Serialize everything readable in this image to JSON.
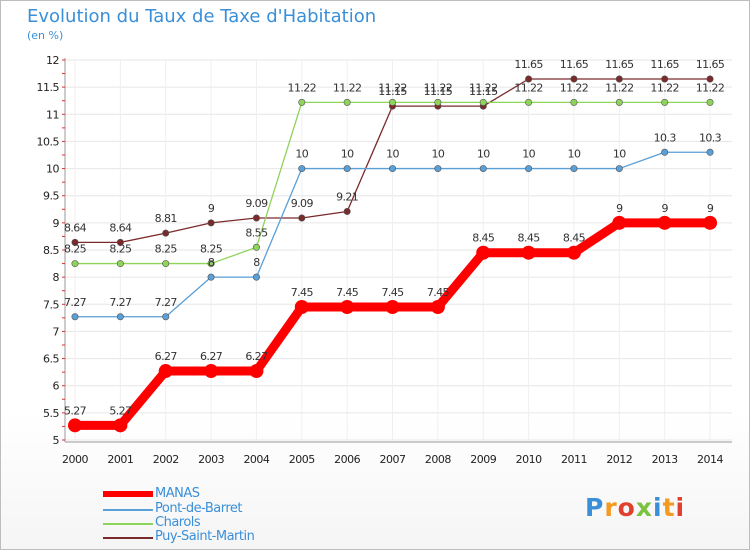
{
  "title": "Evolution du Taux de Taxe d'Habitation",
  "subtitle": "(en %)",
  "logo": {
    "text": "Proxiti",
    "letters": [
      "P",
      "r",
      "o",
      "x",
      "i",
      "t",
      "i"
    ],
    "colors": [
      "#3b8fd8",
      "#f39a1f",
      "#e0412e",
      "#7cc242",
      "#3b8fd8",
      "#f39a1f",
      "#e0412e"
    ]
  },
  "chart_data": {
    "type": "line",
    "x": [
      "2000",
      "2001",
      "2002",
      "2003",
      "2004",
      "2005",
      "2006",
      "2007",
      "2008",
      "2009",
      "2010",
      "2011",
      "2012",
      "2013",
      "2014"
    ],
    "y_ticks": [
      "5",
      "5.5",
      "6",
      "6.5",
      "7",
      "7.5",
      "8",
      "8.5",
      "9",
      "9.5",
      "10",
      "10.5",
      "11",
      "11.5",
      "12"
    ],
    "ylim": [
      5,
      12
    ],
    "series": [
      {
        "name": "MANAS",
        "color": "#ff0000",
        "values": [
          5.27,
          5.27,
          6.27,
          6.27,
          6.27,
          7.45,
          7.45,
          7.45,
          7.45,
          8.45,
          8.45,
          8.45,
          9,
          9,
          9
        ],
        "labels": [
          "5.27",
          "5.27",
          "6.27",
          "6.27",
          "6.27",
          "7.45",
          "7.45",
          "7.45",
          "7.45",
          "8.45",
          "8.45",
          "8.45",
          "9",
          "9",
          "9"
        ]
      },
      {
        "name": "Pont-de-Barret",
        "color": "#5a9fd6",
        "values": [
          7.27,
          7.27,
          7.27,
          8,
          8,
          10,
          10,
          10,
          10,
          10,
          10,
          10,
          10,
          10.3,
          10.3
        ],
        "labels": [
          "7.27",
          "7.27",
          "7.27",
          "8",
          "8",
          "10",
          "10",
          "10",
          "10",
          "10",
          "10",
          "10",
          "10",
          "10.3",
          "10.3"
        ]
      },
      {
        "name": "Charols",
        "color": "#8ed35a",
        "values": [
          8.25,
          8.25,
          8.25,
          8.25,
          8.55,
          11.22,
          11.22,
          11.22,
          11.22,
          11.22,
          11.22,
          11.22,
          11.22,
          11.22,
          11.22
        ],
        "labels": [
          "8.25",
          "8.25",
          "8.25",
          "8.25",
          "8.55",
          "11.22",
          "11.22",
          "11.22",
          "11.22",
          "11.22",
          "11.22",
          "11.22",
          "11.22",
          "11.22",
          "11.22"
        ]
      },
      {
        "name": "Puy-Saint-Martin",
        "color": "#7a2a2a",
        "values": [
          8.64,
          8.64,
          8.81,
          9,
          9.09,
          9.09,
          9.21,
          11.15,
          11.15,
          11.15,
          11.65,
          11.65,
          11.65,
          11.65,
          11.65
        ],
        "labels": [
          "8.64",
          "8.64",
          "8.81",
          "9",
          "9.09",
          "9.09",
          "9.21",
          "11.15",
          "11.15",
          "11.15",
          "11.65",
          "11.65",
          "11.65",
          "11.65",
          "11.65"
        ]
      }
    ]
  }
}
